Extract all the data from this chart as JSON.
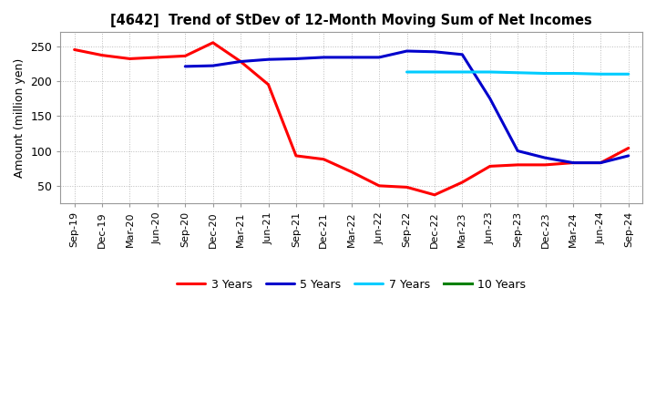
{
  "title": "[4642]  Trend of StDev of 12-Month Moving Sum of Net Incomes",
  "ylabel": "Amount (million yen)",
  "background_color": "#ffffff",
  "plot_background_color": "#ffffff",
  "grid_color": "#bbbbbb",
  "ylim": [
    25,
    270
  ],
  "yticks": [
    50,
    100,
    150,
    200,
    250
  ],
  "x_labels": [
    "Sep-19",
    "Dec-19",
    "Mar-20",
    "Jun-20",
    "Sep-20",
    "Dec-20",
    "Mar-21",
    "Jun-21",
    "Sep-21",
    "Dec-21",
    "Mar-22",
    "Jun-22",
    "Sep-22",
    "Dec-22",
    "Mar-23",
    "Jun-23",
    "Sep-23",
    "Dec-23",
    "Mar-24",
    "Jun-24",
    "Sep-24"
  ],
  "series": {
    "3 Years": {
      "color": "#ff0000",
      "linewidth": 2.2,
      "data_x": [
        0,
        1,
        2,
        3,
        4,
        5,
        6,
        7,
        8,
        9,
        10,
        11,
        12,
        13,
        14,
        15,
        16,
        17,
        18,
        19,
        20
      ],
      "data_y": [
        245,
        237,
        232,
        234,
        236,
        255,
        228,
        195,
        93,
        88,
        70,
        50,
        48,
        37,
        55,
        78,
        80,
        80,
        83,
        83,
        104
      ]
    },
    "5 Years": {
      "color": "#0000cc",
      "linewidth": 2.2,
      "data_x": [
        4,
        5,
        6,
        7,
        8,
        9,
        10,
        11,
        12,
        13,
        14,
        15,
        16,
        17,
        18,
        19,
        20
      ],
      "data_y": [
        221,
        222,
        228,
        231,
        232,
        234,
        234,
        234,
        243,
        242,
        238,
        175,
        100,
        90,
        83,
        83,
        93
      ]
    },
    "7 Years": {
      "color": "#00ccff",
      "linewidth": 2.2,
      "data_x": [
        12,
        13,
        14,
        15,
        16,
        17,
        18,
        19,
        20
      ],
      "data_y": [
        213,
        213,
        213,
        213,
        212,
        211,
        211,
        210,
        210
      ]
    },
    "10 Years": {
      "color": "#008000",
      "linewidth": 2.2,
      "data_x": [],
      "data_y": []
    }
  }
}
